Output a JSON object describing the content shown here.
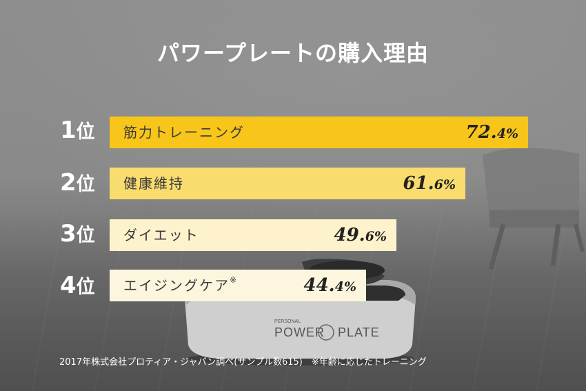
{
  "title": "パワープレートの購入理由",
  "ranking": [
    {
      "rank_num": "1",
      "rank_suffix": "位",
      "label": "筋力トレーニング",
      "note": "",
      "value_int": "72.",
      "value_dec": "4%"
    },
    {
      "rank_num": "2",
      "rank_suffix": "位",
      "label": "健康維持",
      "note": "",
      "value_int": "61.",
      "value_dec": "6%"
    },
    {
      "rank_num": "3",
      "rank_suffix": "位",
      "label": "ダイエット",
      "note": "",
      "value_int": "49.",
      "value_dec": "6%"
    },
    {
      "rank_num": "4",
      "rank_suffix": "位",
      "label": "エイジングケア",
      "note": "※",
      "value_int": "44.",
      "value_dec": "4%"
    }
  ],
  "device_text": {
    "left": "PERSONAL",
    "brand_left": "POWER",
    "brand_right": "PLATE"
  },
  "footnote": "2017年株式会社プロティア・ジャパン調べ(サンプル数615)　※年齢に応じたトレーニング",
  "colors": {
    "bar_1": "#f8c51a",
    "bar_2": "#f9dc6e",
    "bar_3": "#fdf2cc",
    "bar_4": "#fdf6df"
  },
  "chart_data": {
    "type": "bar",
    "orientation": "horizontal",
    "title": "パワープレートの購入理由",
    "categories": [
      "筋力トレーニング",
      "健康維持",
      "ダイエット",
      "エイジングケア※"
    ],
    "values": [
      72.4,
      61.6,
      49.6,
      44.4
    ],
    "unit": "%",
    "xlim": [
      0,
      72.4
    ]
  }
}
